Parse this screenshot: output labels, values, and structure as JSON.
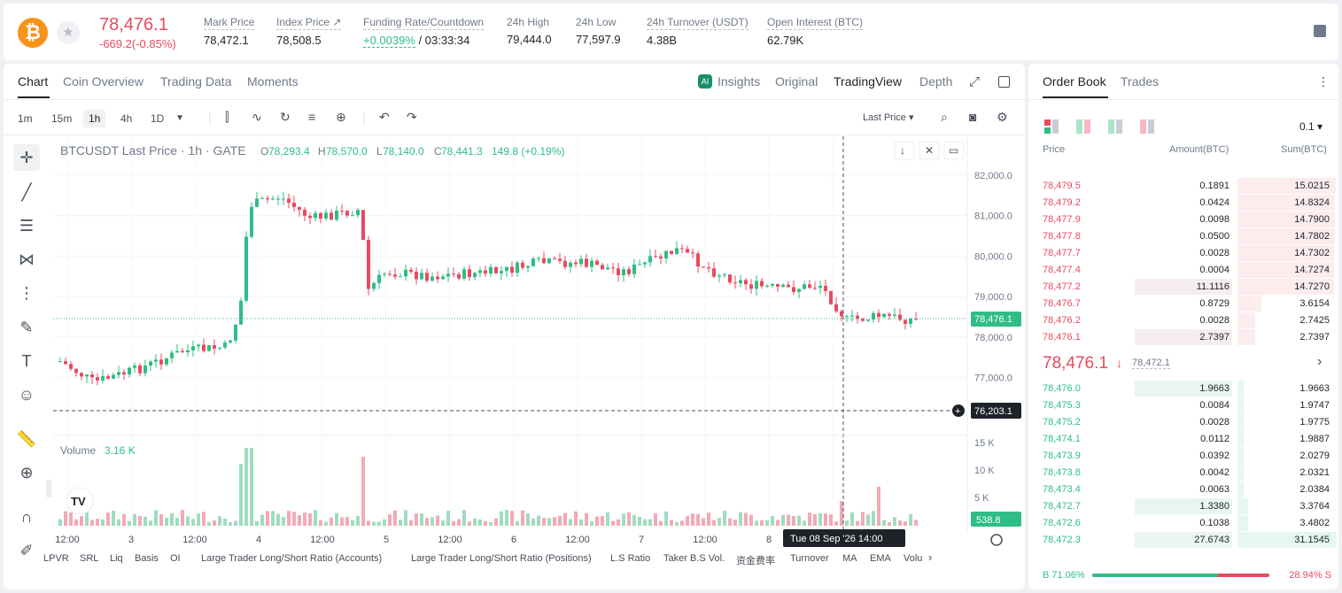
{
  "header": {
    "coin_glyph": "₿",
    "last_price": "78,476.1",
    "change": "-669.2(-0.85%)",
    "stats": [
      {
        "label": "Mark Price",
        "value": "78,472.1"
      },
      {
        "label": "Index Price ↗",
        "value": "78,508.5"
      },
      {
        "label": "Funding Rate/Countdown",
        "value_green": "+0.0039%",
        "value": " / 03:33:34"
      },
      {
        "label": "24h High",
        "value": "79,444.0"
      },
      {
        "label": "24h Low",
        "value": "77,597.9"
      },
      {
        "label": "24h Turnover (USDT)",
        "value": "4.38B"
      },
      {
        "label": "Open Interest (BTC)",
        "value": "62.79K"
      }
    ]
  },
  "chart_tabs": [
    "Chart",
    "Coin Overview",
    "Trading Data",
    "Moments"
  ],
  "view_tabs": {
    "insights": "Insights",
    "original": "Original",
    "tradingview": "TradingView",
    "depth": "Depth"
  },
  "timeframes": [
    "1m",
    "15m",
    "1h",
    "4h",
    "1D"
  ],
  "price_type": "Last Price",
  "legend": {
    "symbol": "BTCUSDT Last Price · 1h · GATE",
    "o_label": "O",
    "o": "78,293.4",
    "h_label": "H",
    "h": "78,570.0",
    "l_label": "L",
    "l": "78,140.0",
    "c_label": "C",
    "c": "78,441.3",
    "chg": "149.8 (+0.19%)"
  },
  "volume": {
    "label": "Volume",
    "value": "3.16 K",
    "tag": "538.8"
  },
  "price_axis": [
    "82,000.0",
    "81,000.0",
    "80,000.0",
    "79,000.0",
    "78,000.0",
    "77,000.0"
  ],
  "volume_axis": [
    "15 K",
    "10 K",
    "5 K"
  ],
  "time_axis": [
    "12:00",
    "3",
    "12:00",
    "4",
    "12:00",
    "5",
    "12:00",
    "6",
    "12:00",
    "7",
    "12:00",
    "8",
    "12:0"
  ],
  "price_tag": "78,476.1",
  "crosshair": {
    "price": "76,203.1",
    "time": "Tue 08 Sep '26   14:00"
  },
  "indicators": [
    "LPVR",
    "SRL",
    "Liq",
    "Basis",
    "OI",
    "Large Trader Long/Short Ratio (Accounts)",
    "Large Trader Long/Short Ratio (Positions)",
    "L.S Ratio",
    "Taker B.S Vol.",
    "资金费率",
    "Turnover",
    "MA",
    "EMA",
    "Volu"
  ],
  "orderbook": {
    "tabs": [
      "Order Book",
      "Trades"
    ],
    "precision": "0.1",
    "headers": [
      "Price",
      "Amount(BTC)",
      "Sum(BTC)"
    ],
    "asks": [
      {
        "p": "78,479.5",
        "a": "0.1891",
        "s": "15.0215"
      },
      {
        "p": "78,479.2",
        "a": "0.0424",
        "s": "14.8324"
      },
      {
        "p": "78,477.9",
        "a": "0.0098",
        "s": "14.7900"
      },
      {
        "p": "78,477.8",
        "a": "0.0500",
        "s": "14.7802"
      },
      {
        "p": "78,477.7",
        "a": "0.0028",
        "s": "14.7302"
      },
      {
        "p": "78,477.4",
        "a": "0.0004",
        "s": "14.7274"
      },
      {
        "p": "78,477.2",
        "a": "11.1116",
        "s": "14.7270"
      },
      {
        "p": "78,476.7",
        "a": "0.8729",
        "s": "3.6154"
      },
      {
        "p": "78,476.2",
        "a": "0.0028",
        "s": "2.7425"
      },
      {
        "p": "78,476.1",
        "a": "2.7397",
        "s": "2.7397"
      }
    ],
    "mid_price": "78,476.1",
    "mid_arrow": "↓",
    "mid_mark": "78,472.1",
    "bids": [
      {
        "p": "78,476.0",
        "a": "1.9663",
        "s": "1.9663"
      },
      {
        "p": "78,475.3",
        "a": "0.0084",
        "s": "1.9747"
      },
      {
        "p": "78,475.2",
        "a": "0.0028",
        "s": "1.9775"
      },
      {
        "p": "78,474.1",
        "a": "0.0112",
        "s": "1.9887"
      },
      {
        "p": "78,473.9",
        "a": "0.0392",
        "s": "2.0279"
      },
      {
        "p": "78,473.8",
        "a": "0.0042",
        "s": "2.0321"
      },
      {
        "p": "78,473.4",
        "a": "0.0063",
        "s": "2.0384"
      },
      {
        "p": "78,472.7",
        "a": "1.3380",
        "s": "3.3764"
      },
      {
        "p": "78,472.6",
        "a": "0.1038",
        "s": "3.4802"
      },
      {
        "p": "78,472.3",
        "a": "27.6743",
        "s": "31.1545"
      }
    ],
    "buy_ratio": "B 71.06%",
    "sell_ratio": "28.94% S",
    "buy_fraction": 0.7106
  },
  "colors": {
    "up": "#2fbd85",
    "down": "#e84a5f"
  }
}
